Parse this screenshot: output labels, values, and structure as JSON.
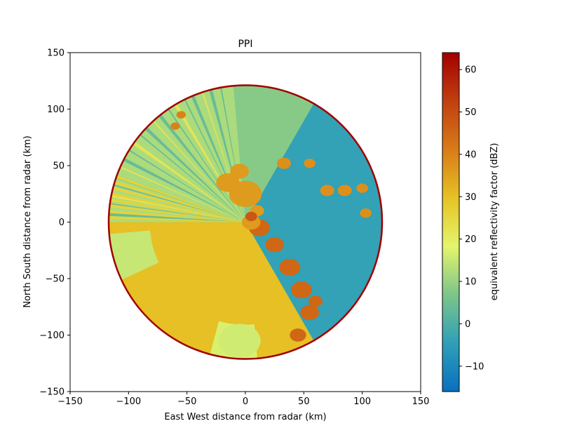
{
  "chart_data": {
    "type": "heatmap",
    "title": "PPI",
    "xlabel": "East West distance from radar (km)",
    "ylabel": "North South distance from radar (km)",
    "xlim": [
      -150,
      150
    ],
    "ylim": [
      -150,
      150
    ],
    "x_ticks": [
      -150,
      -100,
      -50,
      0,
      50,
      100,
      150
    ],
    "y_ticks": [
      -150,
      -100,
      -50,
      0,
      50,
      100,
      150
    ],
    "x_tick_labels": [
      "−150",
      "−100",
      "−50",
      "0",
      "50",
      "100",
      "150"
    ],
    "y_tick_labels": [
      "−150",
      "−100",
      "−50",
      "0",
      "50",
      "100",
      "150"
    ],
    "range_max_km": 117,
    "grid": false,
    "colorbar": {
      "label": "equivalent reflectivity factor (dBZ)",
      "vmin": -16,
      "vmax": 64,
      "ticks": [
        -10,
        0,
        10,
        20,
        30,
        40,
        50,
        60
      ],
      "tick_labels": [
        "−10",
        "0",
        "10",
        "20",
        "30",
        "40",
        "50",
        "60"
      ],
      "colors": [
        "#0a6fbf",
        "#2f9fb8",
        "#7cc58a",
        "#e5f56c",
        "#e6c224",
        "#d87b18",
        "#c03f10",
        "#a30000"
      ]
    },
    "regions": [
      {
        "name": "clear-air-northeast",
        "dbz": -4
      },
      {
        "name": "stratiform-south-west",
        "dbz": 30
      },
      {
        "name": "convective-line-south-east",
        "dbz": 45
      },
      {
        "name": "clutter-near-radar",
        "dbz": 48
      }
    ]
  }
}
